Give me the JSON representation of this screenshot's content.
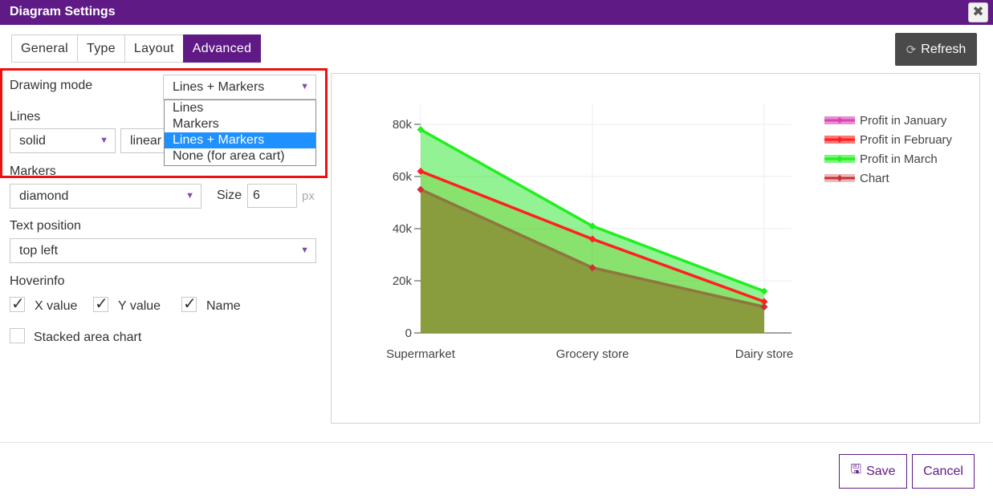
{
  "dialog": {
    "title": "Diagram Settings",
    "close_glyph": "✖"
  },
  "tabs": [
    {
      "label": "General"
    },
    {
      "label": "Type"
    },
    {
      "label": "Layout"
    },
    {
      "label": "Advanced",
      "active": true
    }
  ],
  "refresh": {
    "label": "Refresh",
    "icon": "refresh-icon"
  },
  "drawing_mode": {
    "label": "Drawing mode",
    "value": "Lines + Markers",
    "options": [
      "Lines",
      "Markers",
      "Lines + Markers",
      "None (for area cart)"
    ],
    "selected_index": 2
  },
  "lines": {
    "label": "Lines",
    "style_value": "solid",
    "shape_value": "linear"
  },
  "markers": {
    "label": "Markers",
    "symbol_value": "diamond",
    "size_label": "Size",
    "size_value": "6",
    "size_unit": "px"
  },
  "text_position": {
    "label": "Text position",
    "value": "top left"
  },
  "hoverinfo": {
    "label": "Hoverinfo",
    "x_label": "X value",
    "x_checked": true,
    "y_label": "Y value",
    "y_checked": true,
    "name_label": "Name",
    "name_checked": true
  },
  "stacked": {
    "label": "Stacked area chart",
    "checked": false
  },
  "footer": {
    "save_label": "Save",
    "cancel_label": "Cancel"
  },
  "colors": {
    "accent": "#5f1a86",
    "highlight": "#ee1111",
    "selection": "#1e90ff"
  },
  "chart_data": {
    "type": "area",
    "categories": [
      "Supermarket",
      "Grocery store",
      "Dairy store"
    ],
    "y_ticks": [
      0,
      20000,
      40000,
      60000,
      80000
    ],
    "y_tick_labels": [
      "0",
      "20k",
      "40k",
      "60k",
      "80k"
    ],
    "ylim": [
      0,
      88000
    ],
    "grid": true,
    "legend_position": "top-right",
    "series": [
      {
        "name": "Profit in January",
        "values": [
          55000,
          25000,
          10000
        ],
        "color": "#d946b4",
        "fill": "rgba(210,80,190,0.35)"
      },
      {
        "name": "Profit in February",
        "values": [
          62000,
          36000,
          12000
        ],
        "color": "#ff2020",
        "fill": "rgba(200,160,40,0.35)"
      },
      {
        "name": "Profit in March",
        "values": [
          78000,
          41000,
          16000
        ],
        "color": "#22ee22",
        "fill": "rgba(40,230,40,0.5)"
      },
      {
        "name": "Chart",
        "values": [
          55000,
          25000,
          10000
        ],
        "color": "#c83232",
        "fill": "rgba(140,140,50,0.75)",
        "line_color": "#8a7a3a",
        "legend_fill": "#e08a8a"
      }
    ]
  }
}
